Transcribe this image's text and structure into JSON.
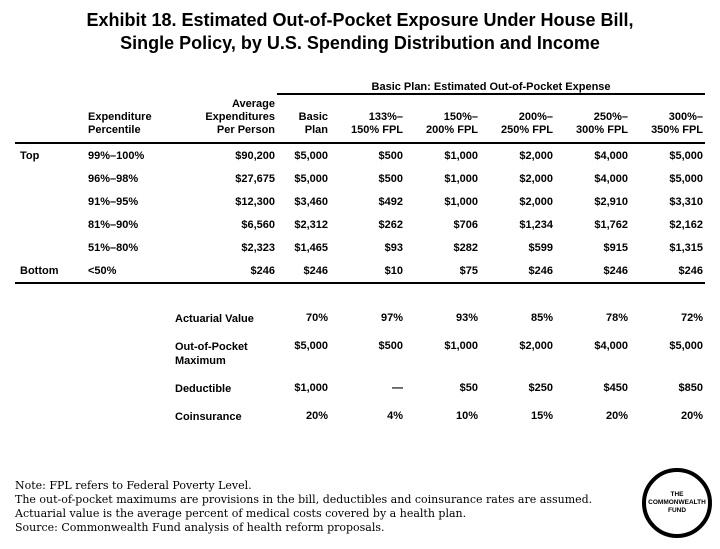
{
  "title": {
    "line1": "Exhibit 18. Estimated Out-of-Pocket Exposure Under House Bill,",
    "line2": "Single Policy, by U.S. Spending Distribution and Income"
  },
  "table": {
    "span_header": "Basic Plan: Estimated Out-of-Pocket Expense",
    "headers": [
      "",
      "Expenditure\nPercentile",
      "Average\nExpenditures\nPer Person",
      "Basic\nPlan",
      "133%–\n150% FPL",
      "150%–\n200% FPL",
      "200%–\n250% FPL",
      "250%–\n300% FPL",
      "300%–\n350% FPL"
    ],
    "rows": [
      [
        "Top",
        "99%–100%",
        "$90,200",
        "$5,000",
        "$500",
        "$1,000",
        "$2,000",
        "$4,000",
        "$5,000"
      ],
      [
        "",
        "96%–98%",
        "$27,675",
        "$5,000",
        "$500",
        "$1,000",
        "$2,000",
        "$4,000",
        "$5,000"
      ],
      [
        "",
        "91%–95%",
        "$12,300",
        "$3,460",
        "$492",
        "$1,000",
        "$2,000",
        "$2,910",
        "$3,310"
      ],
      [
        "",
        "81%–90%",
        "$6,560",
        "$2,312",
        "$262",
        "$706",
        "$1,234",
        "$1,762",
        "$2,162"
      ],
      [
        "",
        "51%–80%",
        "$2,323",
        "$1,465",
        "$93",
        "$282",
        "$599",
        "$915",
        "$1,315"
      ],
      [
        "Bottom",
        "<50%",
        "$246",
        "$246",
        "$10",
        "$75",
        "$246",
        "$246",
        "$246"
      ]
    ],
    "plan_rows": [
      [
        "Actuarial Value",
        "70%",
        "97%",
        "93%",
        "85%",
        "78%",
        "72%"
      ],
      [
        "Out-of-Pocket Maximum",
        "$5,000",
        "$500",
        "$1,000",
        "$2,000",
        "$4,000",
        "$5,000"
      ],
      [
        "Deductible",
        "$1,000",
        "—",
        "$50",
        "$250",
        "$450",
        "$850"
      ],
      [
        "Coinsurance",
        "20%",
        "4%",
        "10%",
        "15%",
        "20%",
        "20%"
      ]
    ]
  },
  "notes": [
    "Note: FPL refers to Federal Poverty Level.",
    "The out-of-pocket maximums are provisions in the bill, deductibles and coinsurance rates are assumed.",
    "Actuarial value is the average percent of medical costs covered by a health plan.",
    "Source: Commonwealth Fund analysis of health reform proposals."
  ],
  "logo": {
    "text": "THE\nCOMMONWEALTH\nFUND"
  },
  "colors": {
    "text": "#000000",
    "background": "#ffffff",
    "line": "#000000"
  }
}
